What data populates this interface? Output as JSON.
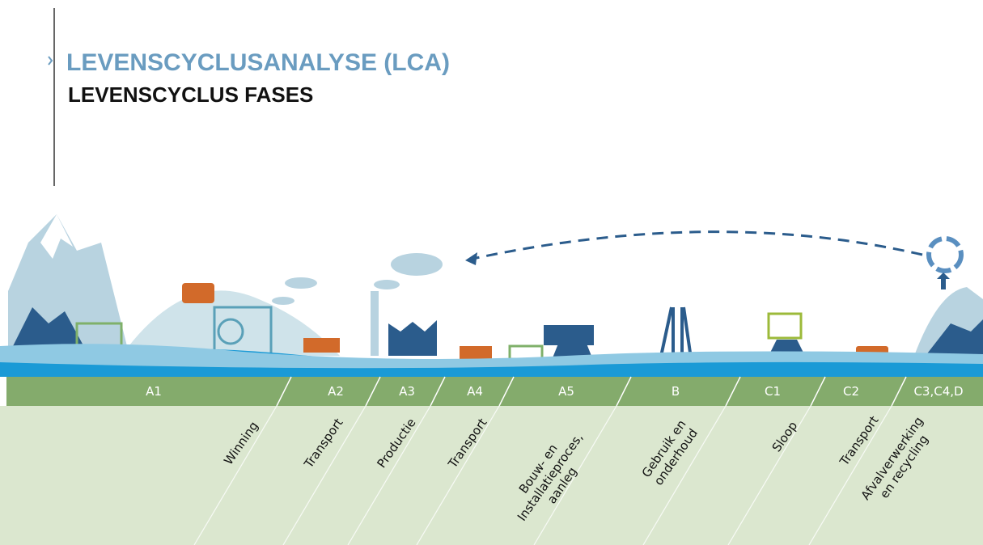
{
  "header": {
    "title": "LEVENSCYCLUSANALYSE (LCA)",
    "subtitle": "LEVENSCYCLUS FASES"
  },
  "phases": [
    {
      "code": "A1",
      "label": [
        "Winning"
      ]
    },
    {
      "code": "A2",
      "label": [
        "Transport"
      ]
    },
    {
      "code": "A3",
      "label": [
        "Productie"
      ]
    },
    {
      "code": "A4",
      "label": [
        "Transport"
      ]
    },
    {
      "code": "A5",
      "label": [
        "Bouw- en",
        "Installatieproces,",
        "aanleg"
      ]
    },
    {
      "code": "B",
      "label": [
        "Gebruik en",
        "onderhoud"
      ]
    },
    {
      "code": "C1",
      "label": [
        "Sloop"
      ]
    },
    {
      "code": "C2",
      "label": [
        "Transport"
      ]
    },
    {
      "code": "C3,C4,D",
      "label": [
        "Afvalverwerking",
        "en recycling"
      ]
    }
  ]
}
